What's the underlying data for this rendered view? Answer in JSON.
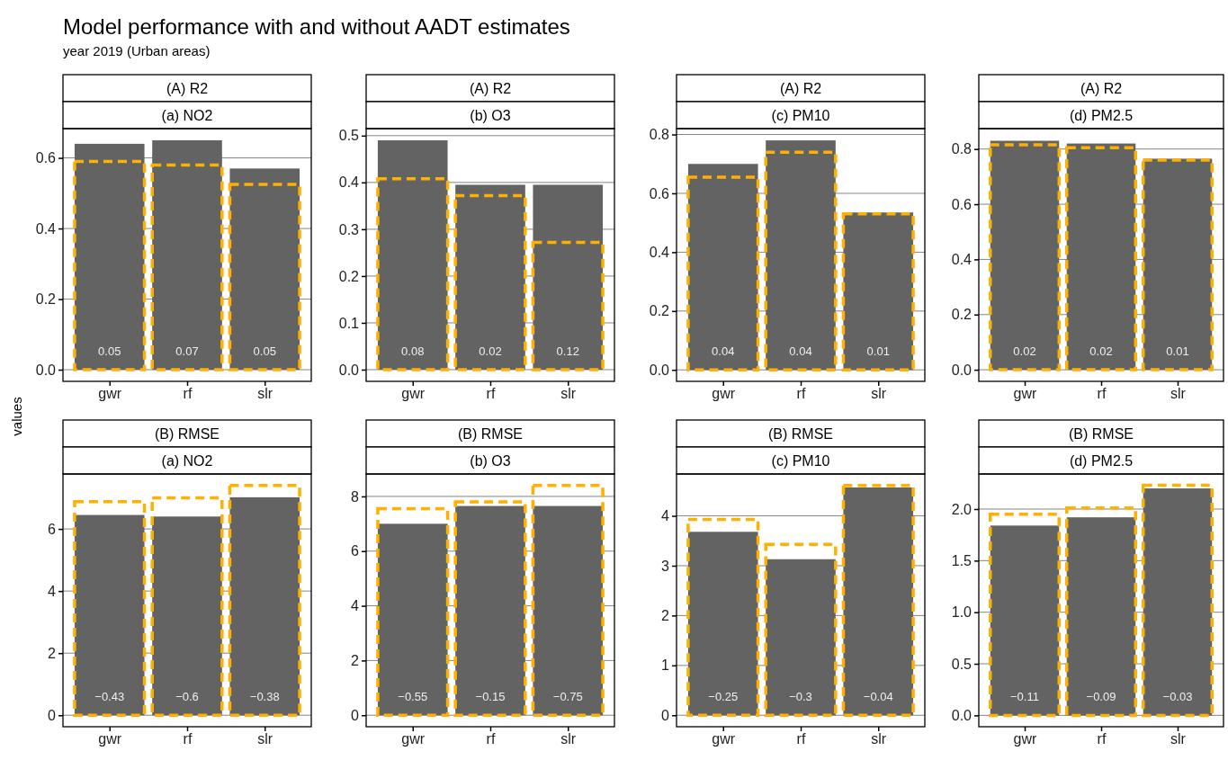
{
  "chart_data": [
    {
      "type": "bar",
      "title": "(A) R2",
      "subtitle": "(a) NO2",
      "ylabel": "values",
      "categories": [
        "gwr",
        "rf",
        "slr"
      ],
      "series": [
        {
          "color": "#636363",
          "values": [
            0.64,
            0.65,
            0.57
          ]
        },
        {
          "color": "#ffb000",
          "line_style": "dashed",
          "values": [
            0.59,
            0.58,
            0.525
          ]
        }
      ],
      "ylim": [
        -0.033,
        0.683
      ],
      "yticks": [
        {
          "value": 0,
          "label": "0.0"
        },
        0.2,
        0.4,
        0.6
      ],
      "grid": "y",
      "annotations": [
        "Model performance with and without AADT estimates",
        "year 2019 (Urban areas)",
        "0.05",
        "0.07",
        "0.05"
      ]
    },
    {
      "type": "bar",
      "title": "(A) R2",
      "subtitle": "(b) O3",
      "categories": [
        "gwr",
        "rf",
        "slr"
      ],
      "series": [
        {
          "color": "#636363",
          "values": [
            0.49,
            0.395,
            0.395
          ]
        },
        {
          "color": "#ffb000",
          "line_style": "dashed",
          "values": [
            0.408,
            0.372,
            0.272
          ]
        }
      ],
      "ylim": [
        -0.025,
        0.515
      ],
      "yticks": [
        {
          "value": 0,
          "label": "0.0"
        },
        0.1,
        0.2,
        0.3,
        0.4,
        0.5
      ],
      "grid": "y",
      "annotations": [
        "0.08",
        "0.02",
        "0.12"
      ]
    },
    {
      "type": "bar",
      "title": "(A) R2",
      "subtitle": "(c) PM10",
      "categories": [
        "gwr",
        "rf",
        "slr"
      ],
      "series": [
        {
          "color": "#636363",
          "values": [
            0.7,
            0.78,
            0.535
          ]
        },
        {
          "color": "#ffb000",
          "line_style": "dashed",
          "values": [
            0.655,
            0.74,
            0.53
          ]
        }
      ],
      "ylim": [
        -0.039,
        0.82
      ],
      "yticks": [
        {
          "value": 0,
          "label": "0.0"
        },
        0.2,
        0.4,
        0.6,
        0.8
      ],
      "grid": "y",
      "annotations": [
        "0.04",
        "0.04",
        "0.01"
      ]
    },
    {
      "type": "bar",
      "title": "(A) R2",
      "subtitle": "(d) PM2.5",
      "categories": [
        "gwr",
        "rf",
        "slr"
      ],
      "series": [
        {
          "color": "#636363",
          "values": [
            0.83,
            0.82,
            0.765
          ]
        },
        {
          "color": "#ffb000",
          "line_style": "dashed",
          "values": [
            0.815,
            0.805,
            0.76
          ]
        }
      ],
      "ylim": [
        -0.042,
        0.874
      ],
      "yticks": [
        {
          "value": 0,
          "label": "0.0"
        },
        0.2,
        0.4,
        0.6,
        0.8
      ],
      "grid": "y",
      "annotations": [
        "0.02",
        "0.02",
        "0.01"
      ]
    },
    {
      "type": "bar",
      "title": "(B) RMSE",
      "subtitle": "(a) NO2",
      "categories": [
        "gwr",
        "rf",
        "slr"
      ],
      "series": [
        {
          "color": "#636363",
          "values": [
            6.45,
            6.4,
            7.02
          ]
        },
        {
          "color": "#ffb000",
          "line_style": "dashed",
          "values": [
            6.88,
            7.0,
            7.4
          ]
        }
      ],
      "ylim": [
        -0.37,
        7.77
      ],
      "yticks": [
        0,
        2,
        4,
        6
      ],
      "grid": "y",
      "annotations": [
        "−0.43",
        "−0.6",
        "−0.38"
      ]
    },
    {
      "type": "bar",
      "title": "(B) RMSE",
      "subtitle": "(b) O3",
      "categories": [
        "gwr",
        "rf",
        "slr"
      ],
      "series": [
        {
          "color": "#636363",
          "values": [
            7.0,
            7.65,
            7.65
          ]
        },
        {
          "color": "#ffb000",
          "line_style": "dashed",
          "values": [
            7.55,
            7.8,
            8.4
          ]
        }
      ],
      "ylim": [
        -0.42,
        8.82
      ],
      "yticks": [
        0,
        2,
        4,
        6,
        8
      ],
      "grid": "y",
      "annotations": [
        "−0.55",
        "−0.15",
        "−0.75"
      ]
    },
    {
      "type": "bar",
      "title": "(B) RMSE",
      "subtitle": "(c) PM10",
      "categories": [
        "gwr",
        "rf",
        "slr"
      ],
      "series": [
        {
          "color": "#636363",
          "values": [
            3.68,
            3.13,
            4.57
          ]
        },
        {
          "color": "#ffb000",
          "line_style": "dashed",
          "values": [
            3.93,
            3.43,
            4.61
          ]
        }
      ],
      "ylim": [
        -0.23,
        4.84
      ],
      "yticks": [
        0,
        1,
        2,
        3,
        4
      ],
      "grid": "y",
      "annotations": [
        "−0.25",
        "−0.3",
        "−0.04"
      ]
    },
    {
      "type": "bar",
      "title": "(B) RMSE",
      "subtitle": "(d) PM2.5",
      "categories": [
        "gwr",
        "rf",
        "slr"
      ],
      "series": [
        {
          "color": "#636363",
          "values": [
            1.84,
            1.92,
            2.2
          ]
        },
        {
          "color": "#ffb000",
          "line_style": "dashed",
          "values": [
            1.95,
            2.01,
            2.23
          ]
        }
      ],
      "ylim": [
        -0.11,
        2.34
      ],
      "yticks": [
        {
          "value": 0,
          "label": "0.0"
        },
        0.5,
        {
          "value": 1,
          "label": "1.0"
        },
        1.5,
        {
          "value": 2,
          "label": "2.0"
        }
      ],
      "grid": "y",
      "annotations": [
        "−0.11",
        "−0.09",
        "−0.03"
      ]
    }
  ]
}
